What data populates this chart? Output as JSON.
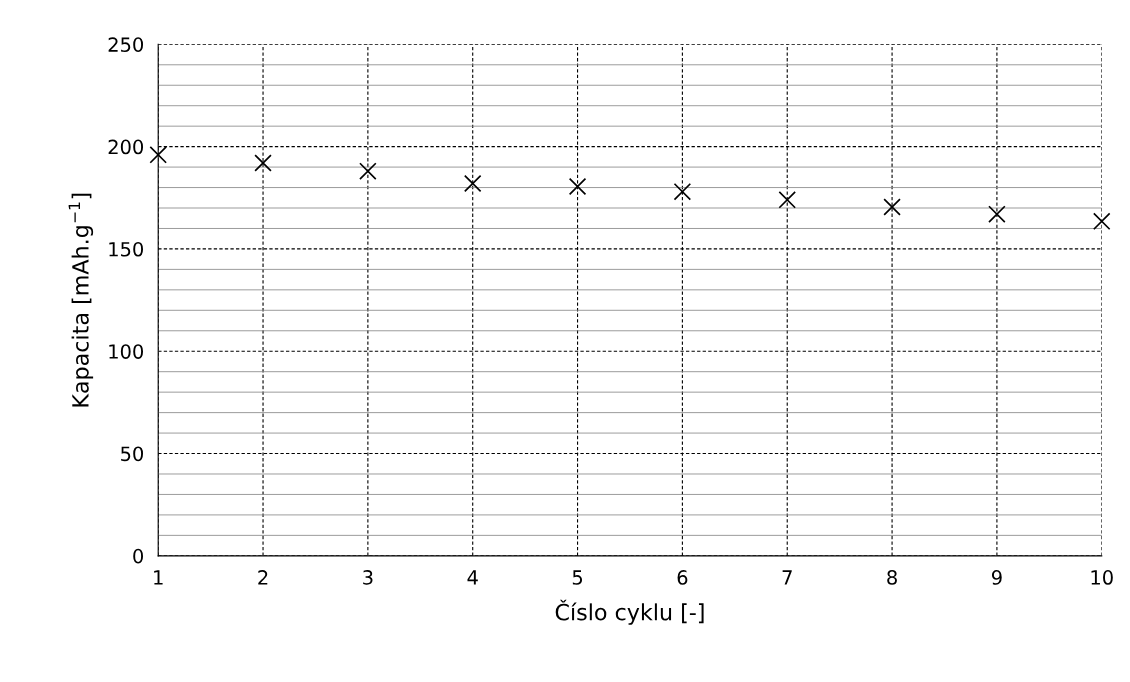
{
  "chart_data": {
    "type": "scatter",
    "xlabel": "Číslo cyklu [-]",
    "ylabel": "Kapacita [mAh.g$^{−1}$]",
    "x": [
      1,
      2,
      3,
      4,
      5,
      6,
      7,
      8,
      9,
      10
    ],
    "series": [
      {
        "color": "#000000",
        "values": [
          196,
          192,
          188,
          182,
          180.5,
          178,
          174,
          170.5,
          167,
          163.5
        ]
      }
    ],
    "marker": "cross",
    "xlim": [
      1,
      10
    ],
    "xticks": [
      1,
      2,
      3,
      4,
      5,
      6,
      7,
      8,
      9,
      10
    ],
    "ylim": [
      0,
      250
    ],
    "yticks": [
      0,
      {
        "value": 10,
        "label": null
      },
      {
        "value": 20,
        "label": null
      },
      {
        "value": 30,
        "label": null
      },
      {
        "value": 40,
        "label": null
      },
      50,
      {
        "value": 60,
        "label": null
      },
      {
        "value": 70,
        "label": null
      },
      {
        "value": 80,
        "label": null
      },
      {
        "value": 90,
        "label": null
      },
      100,
      {
        "value": 110,
        "label": null
      },
      {
        "value": 120,
        "label": null
      },
      {
        "value": 130,
        "label": null
      },
      {
        "value": 140,
        "label": null
      },
      150,
      {
        "value": 160,
        "label": null
      },
      {
        "value": 170,
        "label": null
      },
      {
        "value": 180,
        "label": null
      },
      {
        "value": 190,
        "label": null
      },
      200,
      {
        "value": 210,
        "label": null
      },
      {
        "value": 220,
        "label": null
      },
      {
        "value": 230,
        "label": null
      },
      {
        "value": 240,
        "label": null
      },
      250
    ],
    "grid": true
  }
}
